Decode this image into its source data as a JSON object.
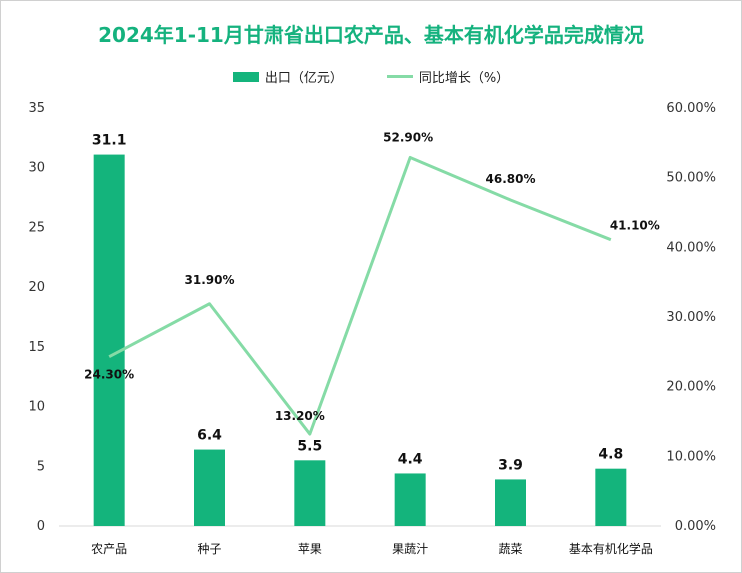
{
  "chart_data": {
    "type": "bar",
    "title": "2024年1-11月甘肃省出口农产品、基本有机化学品完成情况",
    "categories": [
      "农产品",
      "种子",
      "苹果",
      "果蔬汁",
      "蔬菜",
      "基本有机化学品"
    ],
    "series": [
      {
        "name": "出口（亿元）",
        "type": "bar",
        "axis": "left",
        "values": [
          31.1,
          6.4,
          5.5,
          4.4,
          3.9,
          4.8
        ],
        "labels": [
          "31.1",
          "6.4",
          "5.5",
          "4.4",
          "3.9",
          "4.8"
        ],
        "color": "#14b47c"
      },
      {
        "name": "同比增长（%）",
        "type": "line",
        "axis": "right",
        "values": [
          24.3,
          31.9,
          13.2,
          52.9,
          46.8,
          41.1
        ],
        "labels": [
          "24.30%",
          "31.90%",
          "13.20%",
          "52.90%",
          "46.80%",
          "41.10%"
        ],
        "color": "#85dba6"
      }
    ],
    "y_left": {
      "ylim": [
        0,
        35
      ],
      "ticks": [
        "0",
        "5",
        "10",
        "15",
        "20",
        "25",
        "30",
        "35"
      ]
    },
    "y_right": {
      "ylim": [
        0,
        60
      ],
      "ticks": [
        "0.00%",
        "10.00%",
        "20.00%",
        "30.00%",
        "40.00%",
        "50.00%",
        "60.00%"
      ]
    },
    "grid": false,
    "legend": "top"
  }
}
